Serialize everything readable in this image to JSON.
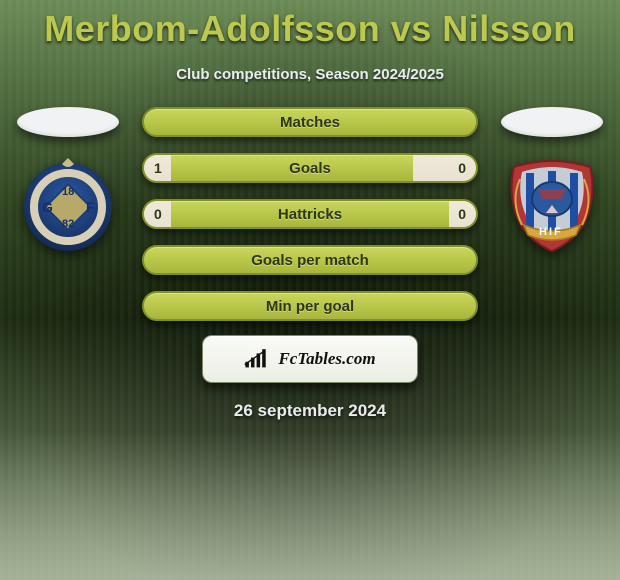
{
  "title": "Merbom-Adolfsson vs Nilsson",
  "subtitle": "Club competitions, Season 2024/2025",
  "date_text": "26 september 2024",
  "brand": {
    "text": "FcTables.com"
  },
  "crest_left": {
    "circle_fill": "#1c3d7a",
    "ring_fill": "#d8d0b6",
    "diamond_fill": "#b6a96a",
    "g_letter": "G",
    "f_letter": "F",
    "year_top": "18",
    "year_bottom": "82",
    "text_color": "#173060"
  },
  "crest_right": {
    "shield_outer": "#b33636",
    "shield_inner": "#b8bfc8",
    "stripes": "#1e4fa3",
    "ball_fill": "#2b599e",
    "scroll": "#d9a640",
    "letters": "HIF",
    "letters_color": "#fff"
  },
  "stats": [
    {
      "label": "Matches",
      "left_val": "",
      "right_val": "",
      "left_fill_pct": 0,
      "right_fill_pct": 0
    },
    {
      "label": "Goals",
      "left_val": "1",
      "right_val": "0",
      "left_fill_pct": 8,
      "right_fill_pct": 19
    },
    {
      "label": "Hattricks",
      "left_val": "0",
      "right_val": "0",
      "left_fill_pct": 8,
      "right_fill_pct": 8
    },
    {
      "label": "Goals per match",
      "left_val": "",
      "right_val": "",
      "left_fill_pct": 0,
      "right_fill_pct": 0
    },
    {
      "label": "Min per goal",
      "left_val": "",
      "right_val": "",
      "left_fill_pct": 0,
      "right_fill_pct": 0
    }
  ],
  "colors": {
    "title": "#bcc94e",
    "pill_bg_top": "#c9d65e",
    "pill_border": "#7e9126",
    "fill_bg": "#efe9db"
  }
}
